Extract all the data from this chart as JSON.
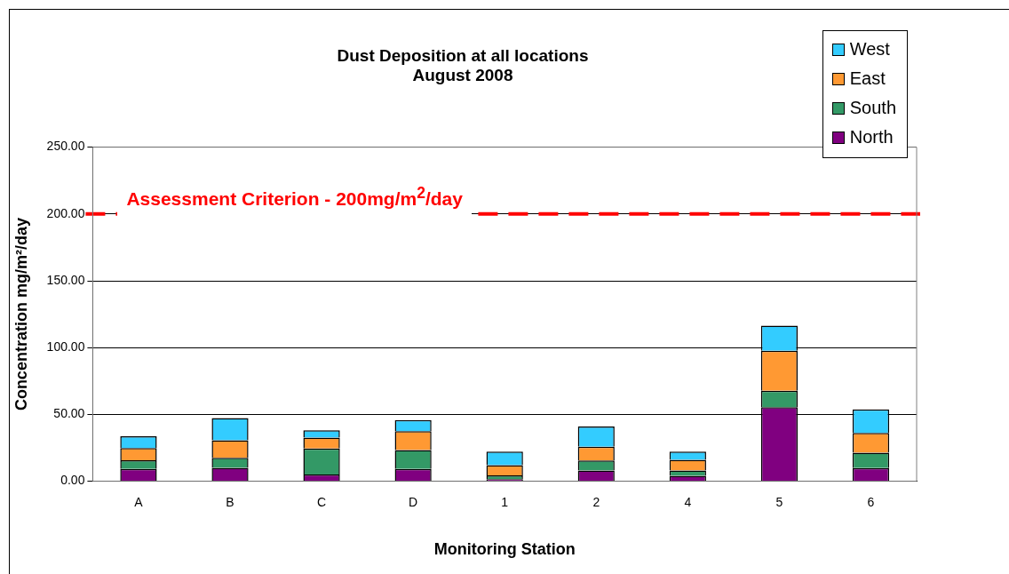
{
  "chart_data": {
    "type": "bar",
    "title": "Dust Deposition at all locations",
    "subtitle": "August 2008",
    "xlabel": "Monitoring Station",
    "ylabel": "Concentration mg/m²/day",
    "categories": [
      "A",
      "B",
      "C",
      "D",
      "1",
      "2",
      "4",
      "5",
      "6"
    ],
    "stacked": true,
    "series": [
      {
        "name": "North",
        "color": "#800080",
        "values": [
          9.2,
          10.1,
          5.1,
          9.2,
          1.6,
          8.1,
          4.1,
          55.5,
          9.9
        ]
      },
      {
        "name": "South",
        "color": "#339966",
        "values": [
          6.5,
          7.4,
          19.4,
          14.1,
          2.8,
          7.4,
          3.9,
          12.2,
          11.5
        ]
      },
      {
        "name": "East",
        "color": "#ff9933",
        "values": [
          9.2,
          13.1,
          8.1,
          14.1,
          7.6,
          10.4,
          8.1,
          30.0,
          14.7
        ]
      },
      {
        "name": "West",
        "color": "#33ccff",
        "values": [
          8.8,
          16.6,
          5.5,
          8.3,
          10.1,
          15.0,
          6.0,
          18.7,
          17.7
        ]
      }
    ],
    "ylim": [
      0,
      250
    ],
    "yticks": [
      {
        "value": 0,
        "label": "0.00"
      },
      {
        "value": 50,
        "label": "50.00"
      },
      {
        "value": 100,
        "label": "100.00"
      },
      {
        "value": 150,
        "label": "150.00"
      },
      {
        "value": 200,
        "label": "200.00"
      },
      {
        "value": 250,
        "label": "250.00"
      }
    ],
    "grid": "y",
    "legend": "top right",
    "ref_lines": [
      {
        "axis": "y",
        "value": 200,
        "label": "Assessment Criterion - 200mg/m$^{2}$/day",
        "color": "#ff0000",
        "line_style": "dashed"
      }
    ]
  }
}
